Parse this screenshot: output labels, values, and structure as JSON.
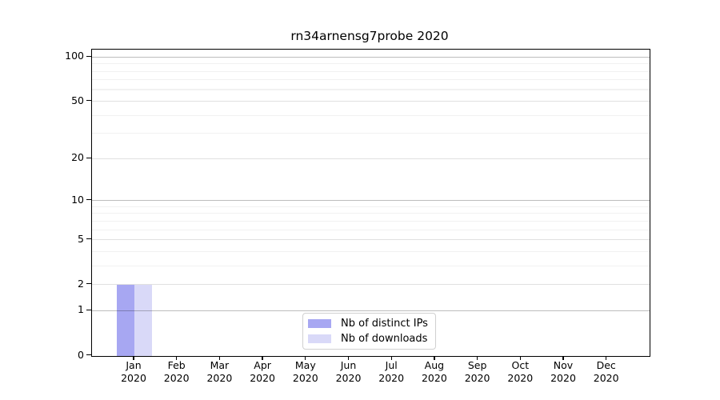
{
  "title": "rn34arnensg7probe 2020",
  "colors": {
    "distinct_ips_bar": "#a7a7f2",
    "downloads_bar": "#d9d9f8",
    "axis": "#000000",
    "grid_decade": "#bdbdbd",
    "grid_major": "#e2e2e2",
    "grid_minor": "#f0f0f0",
    "legend_border": "#d0d0d0"
  },
  "legend": {
    "items": [
      {
        "label": "Nb of distinct IPs",
        "series_key": "distinct_ips"
      },
      {
        "label": "Nb of downloads",
        "series_key": "downloads"
      }
    ]
  },
  "chart_data": {
    "type": "bar",
    "title": "rn34arnensg7probe 2020",
    "categories": [
      "Jan",
      "Feb",
      "Mar",
      "Apr",
      "May",
      "Jun",
      "Jul",
      "Aug",
      "Sep",
      "Oct",
      "Nov",
      "Dec"
    ],
    "year_label": "2020",
    "series": [
      {
        "name": "Nb of distinct IPs",
        "key": "distinct_ips",
        "color": "#a7a7f2",
        "values": [
          2,
          0,
          0,
          0,
          0,
          0,
          0,
          0,
          0,
          0,
          0,
          0
        ]
      },
      {
        "name": "Nb of downloads",
        "key": "downloads",
        "color": "#d9d9f8",
        "values": [
          2,
          0,
          0,
          0,
          0,
          0,
          0,
          0,
          0,
          0,
          0,
          0
        ]
      }
    ],
    "xlabel": "",
    "ylabel": "",
    "y_scale": "log10(value+1)",
    "y_major_ticks": [
      0,
      1,
      2,
      5,
      10,
      20,
      50,
      100
    ],
    "y_decade_ticks": [
      1,
      10,
      100
    ],
    "y_minor_ticks": [
      3,
      4,
      6,
      7,
      8,
      9,
      30,
      40,
      60,
      70,
      80,
      90
    ],
    "ylim": [
      0,
      113
    ],
    "grid": true,
    "legend_position": "lower center"
  }
}
